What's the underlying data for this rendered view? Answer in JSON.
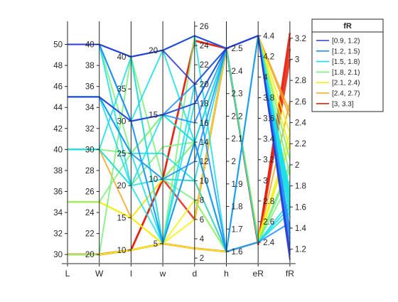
{
  "chart_data": {
    "type": "parallel-coordinates",
    "title": "",
    "coordinates": [
      "L",
      "W",
      "l",
      "w",
      "d",
      "h",
      "eR",
      "fR"
    ],
    "axes": [
      {
        "name": "L",
        "range": [
          29.2,
          52.2
        ],
        "ticks": [
          30,
          32,
          34,
          36,
          38,
          40,
          42,
          44,
          46,
          48,
          50
        ],
        "tick_side": "left"
      },
      {
        "name": "W",
        "range": [
          19.2,
          42.2
        ],
        "ticks": [
          20,
          22,
          24,
          26,
          28,
          30,
          32,
          34,
          36,
          38,
          40
        ],
        "tick_side": "left"
      },
      {
        "name": "l",
        "range": [
          8.0,
          45.5
        ],
        "ticks": [
          10,
          15,
          20,
          25,
          30,
          35,
          40
        ],
        "tick_side": "left"
      },
      {
        "name": "w",
        "range": [
          3.5,
          22.25
        ],
        "ticks": [
          5,
          10,
          15,
          20
        ],
        "tick_side": "left"
      },
      {
        "name": "d",
        "range": [
          1.5,
          26.5
        ],
        "ticks": [
          2,
          4,
          6,
          8,
          10,
          12,
          14,
          16,
          18,
          20,
          22,
          24,
          26
        ],
        "tick_side": "right"
      },
      {
        "name": "h",
        "range": [
          1.55,
          2.62
        ],
        "ticks": [
          1.6,
          1.7,
          1.8,
          1.9,
          2,
          2.1,
          2.2,
          2.3,
          2.4,
          2.5
        ],
        "tick_side": "right"
      },
      {
        "name": "eR",
        "range": [
          2.2,
          4.54
        ],
        "ticks": [
          2.4,
          2.6,
          2.8,
          3,
          3.2,
          3.4,
          3.6,
          3.8,
          4,
          4.2,
          4.4
        ],
        "tick_side": "right"
      },
      {
        "name": "fR",
        "range": [
          1.07,
          3.36
        ],
        "ticks": [
          1.2,
          1.4,
          1.6,
          1.8,
          2,
          2.2,
          2.4,
          2.6,
          2.8,
          3,
          3.2
        ],
        "tick_side": "right"
      }
    ],
    "legend": {
      "title": "fR",
      "position": "outside-right",
      "groups": [
        {
          "label": "[0.9, 1.2)",
          "color": "#2c3bd6"
        },
        {
          "label": "[1.2, 1.5)",
          "color": "#1e8fff"
        },
        {
          "label": "[1.5, 1.8)",
          "color": "#19dfe6"
        },
        {
          "label": "[1.8, 2.1)",
          "color": "#7df07a"
        },
        {
          "label": "[2.1, 2.4)",
          "color": "#f2f20e"
        },
        {
          "label": "[2.4, 2.7)",
          "color": "#f5a623"
        },
        {
          "label": "[3, 3.3]",
          "color": "#e8230e"
        }
      ]
    },
    "series": [
      {
        "group": 6,
        "values": [
          30,
          20,
          10,
          10,
          24.5,
          2.5,
          2.38,
          3.25
        ]
      },
      {
        "group": 6,
        "values": [
          30,
          20,
          10,
          10,
          24.5,
          2.5,
          2.4,
          3.2
        ]
      },
      {
        "group": 6,
        "values": [
          30,
          20,
          10,
          5,
          3,
          1.6,
          2.4,
          3.1
        ]
      },
      {
        "group": 6,
        "values": [
          30,
          20,
          10,
          10,
          6,
          2.5,
          2.38,
          3.0
        ]
      },
      {
        "group": 5,
        "values": [
          30,
          20,
          10,
          5,
          3,
          1.6,
          4.4,
          2.5
        ]
      },
      {
        "group": 5,
        "values": [
          35,
          25,
          15,
          5,
          14,
          1.6,
          2.4,
          2.6
        ]
      },
      {
        "group": 5,
        "values": [
          40,
          30,
          15,
          10,
          10,
          1.6,
          4.4,
          2.45
        ]
      },
      {
        "group": 4,
        "values": [
          30,
          20,
          10,
          5,
          3,
          1.6,
          4.4,
          2.3
        ]
      },
      {
        "group": 4,
        "values": [
          35,
          25,
          15,
          5,
          14,
          1.6,
          2.4,
          2.3
        ]
      },
      {
        "group": 4,
        "values": [
          35,
          25,
          15,
          10,
          14,
          2.5,
          2.4,
          2.2
        ]
      },
      {
        "group": 4,
        "values": [
          35,
          25,
          15,
          5,
          6,
          2.5,
          2.45,
          2.2
        ]
      },
      {
        "group": 4,
        "values": [
          30,
          20,
          10,
          5,
          8,
          1.6,
          4.4,
          2.15
        ]
      },
      {
        "group": 3,
        "values": [
          40,
          30,
          25,
          10,
          14,
          1.6,
          2.4,
          2.0
        ]
      },
      {
        "group": 3,
        "values": [
          50,
          40,
          40,
          10,
          8,
          1.6,
          4.4,
          1.9
        ]
      },
      {
        "group": 3,
        "values": [
          35,
          25,
          25,
          15,
          14,
          1.6,
          2.4,
          2.0
        ]
      },
      {
        "group": 3,
        "values": [
          30,
          20,
          40,
          5,
          25,
          2.5,
          2.4,
          1.95
        ]
      },
      {
        "group": 3,
        "values": [
          40,
          30,
          20,
          12.5,
          14,
          2.5,
          4.4,
          2.05
        ]
      },
      {
        "group": 3,
        "values": [
          50,
          40,
          25,
          15,
          14,
          1.6,
          2.4,
          1.85
        ]
      },
      {
        "group": 2,
        "values": [
          50,
          40,
          40,
          20,
          25,
          2.5,
          4.4,
          1.6
        ]
      },
      {
        "group": 2,
        "values": [
          45,
          35,
          30,
          15,
          18,
          2.5,
          4.4,
          1.55
        ]
      },
      {
        "group": 2,
        "values": [
          40,
          30,
          40,
          5,
          14,
          2.5,
          4.4,
          1.7
        ]
      },
      {
        "group": 2,
        "values": [
          45,
          35,
          30,
          20,
          14,
          1.6,
          2.4,
          1.6
        ]
      },
      {
        "group": 2,
        "values": [
          50,
          40,
          40,
          20,
          25,
          1.6,
          4.4,
          1.5
        ]
      },
      {
        "group": 2,
        "values": [
          45,
          35,
          25,
          12,
          10,
          2.5,
          4.4,
          1.75
        ]
      },
      {
        "group": 2,
        "values": [
          50,
          40,
          30,
          5,
          20,
          2.5,
          2.4,
          1.65
        ]
      },
      {
        "group": 2,
        "values": [
          40,
          30,
          20,
          10,
          10,
          1.6,
          2.4,
          1.55
        ]
      },
      {
        "group": 2,
        "values": [
          45,
          35,
          20,
          15,
          14,
          2.5,
          4.4,
          1.7
        ]
      },
      {
        "group": 2,
        "values": [
          50,
          40,
          20,
          5,
          14,
          1.6,
          4.4,
          1.6
        ]
      },
      {
        "group": 2,
        "values": [
          45,
          35,
          25,
          5,
          18,
          2.5,
          4.4,
          1.65
        ]
      },
      {
        "group": 1,
        "values": [
          45,
          35,
          30,
          15,
          16,
          2.5,
          4.4,
          1.3
        ]
      },
      {
        "group": 1,
        "values": [
          50,
          40,
          40,
          20,
          25,
          2.5,
          4.4,
          1.35
        ]
      },
      {
        "group": 1,
        "values": [
          50,
          40,
          30,
          15,
          20,
          1.6,
          4.4,
          1.4
        ]
      },
      {
        "group": 1,
        "values": [
          45,
          35,
          25,
          10,
          12,
          2.5,
          4.4,
          1.25
        ]
      },
      {
        "group": 1,
        "values": [
          50,
          40,
          30,
          5,
          14,
          1.6,
          2.4,
          1.45
        ]
      },
      {
        "group": 0,
        "values": [
          50,
          40,
          40,
          20,
          25,
          2.5,
          4.4,
          1.15
        ]
      },
      {
        "group": 0,
        "values": [
          45,
          35,
          30,
          15,
          18,
          2.5,
          4.4,
          1.1
        ]
      },
      {
        "group": 0,
        "values": [
          50,
          40,
          40,
          20,
          20,
          2.5,
          4.4,
          1.18
        ]
      }
    ]
  }
}
